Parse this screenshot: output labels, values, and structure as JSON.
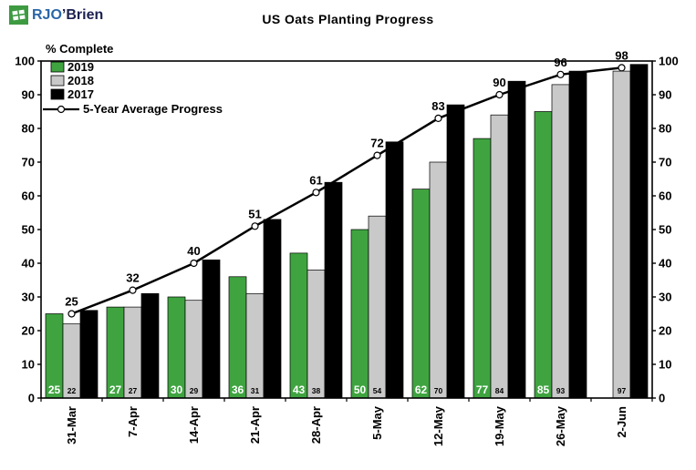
{
  "logo": {
    "rjo": "RJO",
    "brien": "’Brien"
  },
  "chart_data": {
    "type": "bar",
    "title": "US Oats Planting Progress",
    "ylabel": "% Complete",
    "ylim": [
      0,
      100
    ],
    "y_ticks": [
      0,
      10,
      20,
      30,
      40,
      50,
      60,
      70,
      80,
      90,
      100
    ],
    "grid": false,
    "legend_position": "top-left-inside",
    "categories": [
      "31-Mar",
      "7-Apr",
      "14-Apr",
      "21-Apr",
      "28-Apr",
      "5-May",
      "12-May",
      "19-May",
      "26-May",
      "2-Jun"
    ],
    "series": [
      {
        "name": "2019",
        "color": "#3fa440",
        "values": [
          25,
          27,
          30,
          36,
          43,
          50,
          62,
          77,
          85,
          null
        ],
        "value_labels": {
          "color": "#ffffff",
          "size": 12
        }
      },
      {
        "name": "2018",
        "color": "#c9c9c9",
        "values": [
          22,
          27,
          29,
          31,
          38,
          54,
          70,
          84,
          93,
          97
        ],
        "value_labels": {
          "color": "#000000",
          "size": 8.5
        }
      },
      {
        "name": "2017",
        "color": "#000000",
        "values": [
          26,
          31,
          41,
          53,
          64,
          76,
          87,
          94,
          97,
          99
        ]
      }
    ],
    "line_series": {
      "name": "5-Year Average Progress",
      "color": "#000000",
      "marker": "open-circle",
      "values": [
        25,
        32,
        40,
        51,
        61,
        72,
        83,
        90,
        96,
        98
      ]
    }
  }
}
